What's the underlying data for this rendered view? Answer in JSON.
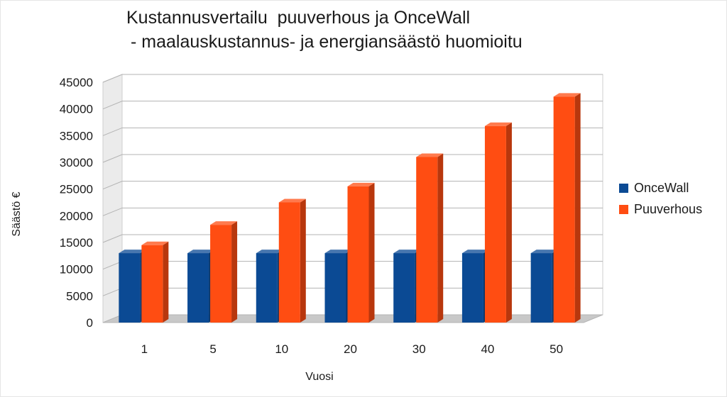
{
  "chart_data": {
    "type": "bar",
    "title": "Kustannusvertailu  puuverhous ja OnceWall",
    "subtitle": "- maalauskustannus- ja energiansäästö huomioitu",
    "xlabel": "Vuosi",
    "ylabel": "Säästö €",
    "categories": [
      "1",
      "5",
      "10",
      "20",
      "30",
      "40",
      "50"
    ],
    "series": [
      {
        "name": "OnceWall",
        "color": "#0b4a94",
        "values": [
          13000,
          13000,
          13000,
          13000,
          13000,
          13000,
          13000
        ]
      },
      {
        "name": "Puuverhous",
        "color": "#ff4d12",
        "values": [
          14500,
          18300,
          22500,
          25500,
          31000,
          36800,
          42300
        ]
      }
    ],
    "ylim": [
      0,
      45000
    ],
    "yticks": [
      "0",
      "5000",
      "10000",
      "15000",
      "20000",
      "25000",
      "30000",
      "35000",
      "40000",
      "45000"
    ],
    "grid": true,
    "legend_position": "right",
    "colors": {
      "oncewall": "#0b4a94",
      "puuverhous": "#ff4d12",
      "wall": "#ffffff",
      "floor": "#c8c8c8",
      "grid": "#b3b3b3"
    }
  }
}
